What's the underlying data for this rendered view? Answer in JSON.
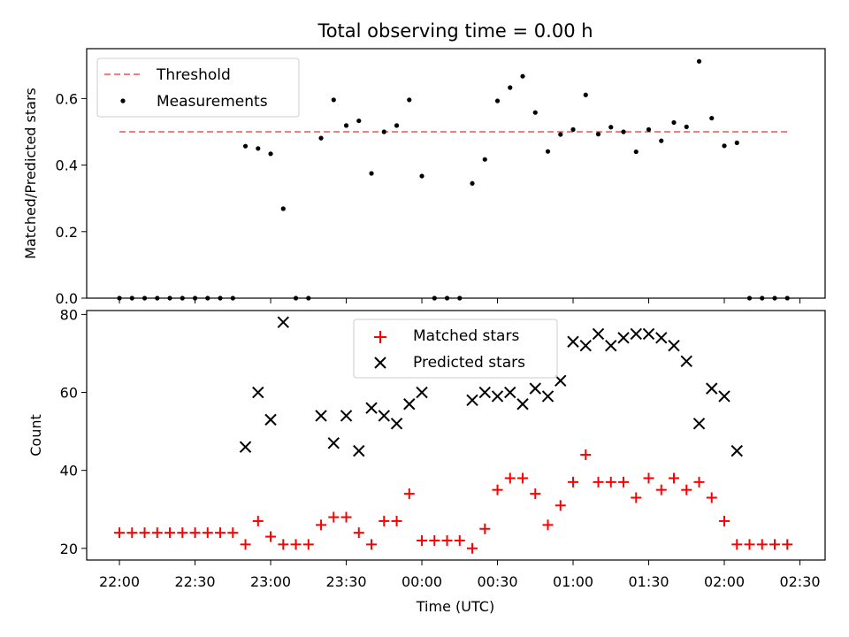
{
  "chart_data": [
    {
      "type": "scatter",
      "title": "Total observing time = 0.00 h",
      "xlabel": "",
      "ylabel": "Matched/Predicted stars",
      "xlim": [
        "21:47",
        "02:40"
      ],
      "ylim": [
        0,
        0.75
      ],
      "yticks": [
        0.0,
        0.2,
        0.4,
        0.6
      ],
      "ytick_labels": [
        "0.0",
        "0.2",
        "0.4",
        "0.6"
      ],
      "xtick_labels_shown": false,
      "grid": false,
      "legend_position": "upper-left",
      "threshold": {
        "name": "Threshold",
        "value": 0.5,
        "x": [
          "22:00",
          "02:25"
        ],
        "color": "#f08080"
      },
      "series": [
        {
          "name": "Measurements",
          "color": "#000000",
          "x": [
            "22:00",
            "22:05",
            "22:10",
            "22:15",
            "22:20",
            "22:25",
            "22:30",
            "22:35",
            "22:40",
            "22:45",
            "22:50",
            "22:55",
            "23:00",
            "23:05",
            "23:10",
            "23:15",
            "23:20",
            "23:25",
            "23:30",
            "23:35",
            "23:40",
            "23:45",
            "23:50",
            "23:55",
            "00:00",
            "00:05",
            "00:10",
            "00:15",
            "00:20",
            "00:25",
            "00:30",
            "00:35",
            "00:40",
            "00:45",
            "00:50",
            "00:55",
            "01:00",
            "01:05",
            "01:10",
            "01:15",
            "01:20",
            "01:25",
            "01:30",
            "01:35",
            "01:40",
            "01:45",
            "01:50",
            "01:55",
            "02:00",
            "02:05",
            "02:10",
            "02:15",
            "02:20",
            "02:25"
          ],
          "y": [
            0.0,
            0.0,
            0.0,
            0.0,
            0.0,
            0.0,
            0.0,
            0.0,
            0.0,
            0.0,
            0.457,
            0.45,
            0.434,
            0.269,
            0.0,
            0.0,
            0.481,
            0.596,
            0.519,
            0.533,
            0.375,
            0.5,
            0.519,
            0.596,
            0.367,
            0.0,
            0.0,
            0.0,
            0.345,
            0.417,
            0.593,
            0.633,
            0.667,
            0.558,
            0.441,
            0.492,
            0.507,
            0.611,
            0.493,
            0.514,
            0.5,
            0.44,
            0.507,
            0.473,
            0.528,
            0.515,
            0.712,
            0.541,
            0.458,
            0.467,
            0.0,
            0.0,
            0.0,
            0.0
          ]
        }
      ]
    },
    {
      "type": "scatter",
      "title": "",
      "xlabel": "Time (UTC)",
      "ylabel": "Count",
      "xlim": [
        "21:47",
        "02:40"
      ],
      "ylim": [
        17,
        81
      ],
      "yticks": [
        20,
        40,
        60,
        80
      ],
      "ytick_labels": [
        "20",
        "40",
        "60",
        "80"
      ],
      "xticks": [
        "22:00",
        "22:30",
        "23:00",
        "23:30",
        "00:00",
        "00:30",
        "01:00",
        "01:30",
        "02:00",
        "02:30"
      ],
      "xtick_labels": [
        "22:00",
        "22:30",
        "23:00",
        "23:30",
        "00:00",
        "00:30",
        "01:00",
        "01:30",
        "02:00",
        "02:30"
      ],
      "grid": false,
      "legend_position": "upper-center",
      "series": [
        {
          "name": "Matched stars",
          "marker": "plus",
          "color": "#ff0000",
          "x": [
            "22:00",
            "22:05",
            "22:10",
            "22:15",
            "22:20",
            "22:25",
            "22:30",
            "22:35",
            "22:40",
            "22:45",
            "22:50",
            "22:55",
            "23:00",
            "23:05",
            "23:10",
            "23:15",
            "23:20",
            "23:25",
            "23:30",
            "23:35",
            "23:40",
            "23:45",
            "23:50",
            "23:55",
            "00:00",
            "00:05",
            "00:10",
            "00:15",
            "00:20",
            "00:25",
            "00:30",
            "00:35",
            "00:40",
            "00:45",
            "00:50",
            "00:55",
            "01:00",
            "01:05",
            "01:10",
            "01:15",
            "01:20",
            "01:25",
            "01:30",
            "01:35",
            "01:40",
            "01:45",
            "01:50",
            "01:55",
            "02:00",
            "02:05",
            "02:10",
            "02:15",
            "02:20",
            "02:25"
          ],
          "y": [
            24,
            24,
            24,
            24,
            24,
            24,
            24,
            24,
            24,
            24,
            21,
            27,
            23,
            21,
            21,
            21,
            26,
            28,
            28,
            24,
            21,
            27,
            27,
            34,
            22,
            22,
            22,
            22,
            20,
            25,
            35,
            38,
            38,
            34,
            26,
            31,
            37,
            44,
            37,
            37,
            37,
            33,
            38,
            35,
            38,
            35,
            37,
            33,
            27,
            21,
            21,
            21,
            21,
            21
          ]
        },
        {
          "name": "Predicted stars",
          "marker": "cross",
          "color": "#000000",
          "x": [
            "22:50",
            "22:55",
            "23:00",
            "23:05",
            "23:20",
            "23:25",
            "23:30",
            "23:35",
            "23:40",
            "23:45",
            "23:50",
            "23:55",
            "00:00",
            "00:20",
            "00:25",
            "00:30",
            "00:35",
            "00:40",
            "00:45",
            "00:50",
            "00:55",
            "01:00",
            "01:05",
            "01:10",
            "01:15",
            "01:20",
            "01:25",
            "01:30",
            "01:35",
            "01:40",
            "01:45",
            "01:50",
            "01:55",
            "02:00",
            "02:05"
          ],
          "y": [
            46,
            60,
            53,
            78,
            54,
            47,
            54,
            45,
            56,
            54,
            52,
            57,
            60,
            58,
            60,
            59,
            60,
            57,
            61,
            59,
            63,
            73,
            72,
            75,
            72,
            74,
            75,
            75,
            74,
            72,
            68,
            52,
            61,
            59,
            45
          ]
        }
      ]
    }
  ]
}
